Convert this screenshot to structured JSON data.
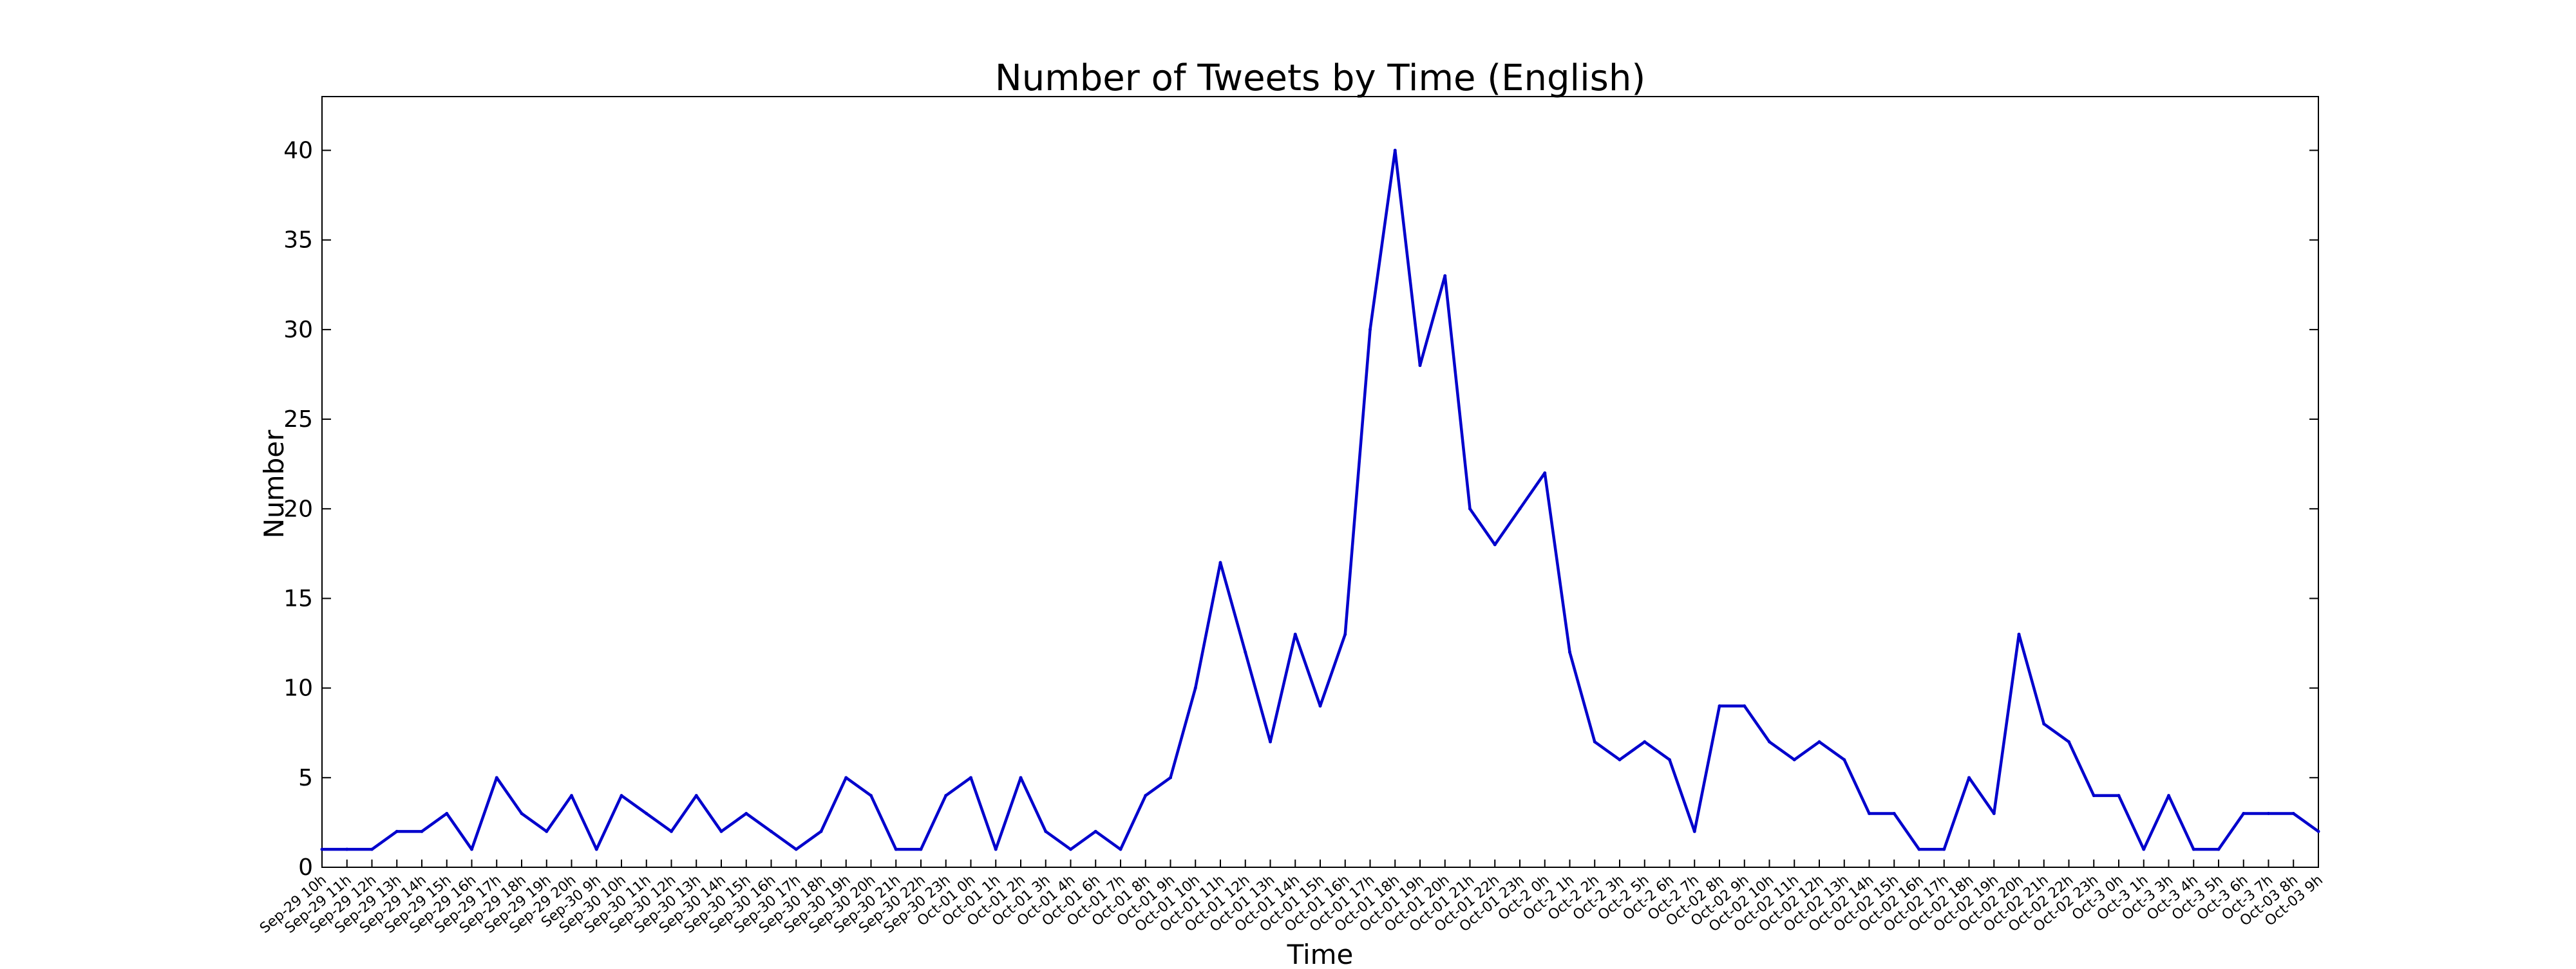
{
  "chart_data": {
    "type": "line",
    "title": "Number of Tweets by Time (English)",
    "xlabel": "Time",
    "ylabel": "Number",
    "ylim": [
      0,
      43
    ],
    "yticks": [
      0,
      5,
      10,
      15,
      20,
      25,
      30,
      35,
      40
    ],
    "grid": false,
    "colors": {
      "line": "#0000cc",
      "axes": "#000000",
      "background": "#ffffff"
    },
    "categories": [
      "Sep-29 10h",
      "Sep-29 11h",
      "Sep-29 12h",
      "Sep-29 13h",
      "Sep-29 14h",
      "Sep-29 15h",
      "Sep-29 16h",
      "Sep-29 17h",
      "Sep-29 18h",
      "Sep-29 19h",
      "Sep-29 20h",
      "Sep-30 9h",
      "Sep-30 10h",
      "Sep-30 11h",
      "Sep-30 12h",
      "Sep-30 13h",
      "Sep-30 14h",
      "Sep-30 15h",
      "Sep-30 16h",
      "Sep-30 17h",
      "Sep-30 18h",
      "Sep-30 19h",
      "Sep-30 20h",
      "Sep-30 21h",
      "Sep-30 22h",
      "Sep-30 23h",
      "Oct-01 0h",
      "Oct-01 1h",
      "Oct-01 2h",
      "Oct-01 3h",
      "Oct-01 4h",
      "Oct-01 6h",
      "Oct-01 7h",
      "Oct-01 8h",
      "Oct-01 9h",
      "Oct-01 10h",
      "Oct-01 11h",
      "Oct-01 12h",
      "Oct-01 13h",
      "Oct-01 14h",
      "Oct-01 15h",
      "Oct-01 16h",
      "Oct-01 17h",
      "Oct-01 18h",
      "Oct-01 19h",
      "Oct-01 20h",
      "Oct-01 21h",
      "Oct-01 22h",
      "Oct-01 23h",
      "Oct-2 0h",
      "Oct-2 1h",
      "Oct-2 2h",
      "Oct-2 3h",
      "Oct-2 5h",
      "Oct-2 6h",
      "Oct-2 7h",
      "Oct-02 8h",
      "Oct-02 9h",
      "Oct-02 10h",
      "Oct-02 11h",
      "Oct-02 12h",
      "Oct-02 13h",
      "Oct-02 14h",
      "Oct-02 15h",
      "Oct-02 16h",
      "Oct-02 17h",
      "Oct-02 18h",
      "Oct-02 19h",
      "Oct-02 20h",
      "Oct-02 21h",
      "Oct-02 22h",
      "Oct-02 23h",
      "Oct-3 0h",
      "Oct-3 1h",
      "Oct-3 3h",
      "Oct-3 4h",
      "Oct-3 5h",
      "Oct-3 6h",
      "Oct-3 7h",
      "Oct-03 8h",
      "Oct-03 9h"
    ],
    "series": [
      {
        "values": [
          1,
          1,
          1,
          2,
          2,
          3,
          1,
          5,
          3,
          2,
          4,
          1,
          4,
          3,
          2,
          4,
          2,
          3,
          2,
          1,
          2,
          5,
          4,
          1,
          1,
          4,
          5,
          1,
          5,
          2,
          1,
          2,
          1,
          4,
          5,
          10,
          17,
          12,
          7,
          13,
          9,
          13,
          30,
          40,
          28,
          33,
          20,
          18,
          20,
          22,
          12,
          7,
          6,
          7,
          6,
          2,
          9,
          9,
          7,
          6,
          7,
          6,
          3,
          3,
          1,
          1,
          5,
          3,
          13,
          8,
          7,
          4,
          4,
          1,
          4,
          1,
          1,
          3,
          3,
          3,
          2
        ]
      }
    ]
  }
}
